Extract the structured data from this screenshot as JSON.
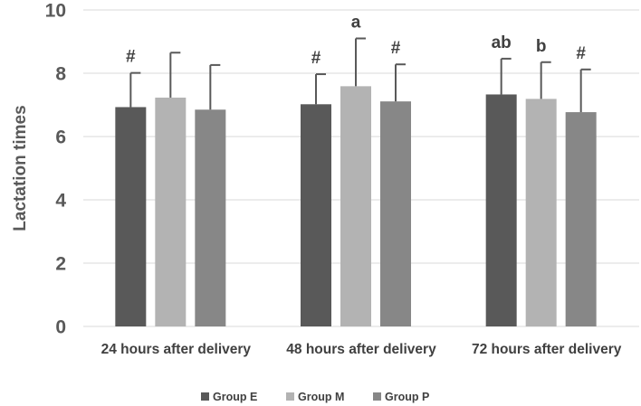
{
  "chart_data": {
    "type": "bar",
    "title": "",
    "xlabel": "",
    "ylabel": "Lactation times",
    "ylim": [
      0,
      10
    ],
    "yticks": [
      0,
      2,
      4,
      6,
      8,
      10
    ],
    "grid": true,
    "legend_position": "bottom",
    "categories": [
      "24 hours after delivery",
      "48 hours after delivery",
      "72 hours after delivery"
    ],
    "series": [
      {
        "name": "Group E",
        "color": "#595959",
        "values": [
          6.93,
          7.02,
          7.33
        ],
        "errors": [
          1.08,
          0.95,
          1.13
        ],
        "annotations": [
          "#",
          "#",
          "ab"
        ]
      },
      {
        "name": "Group M",
        "color": "#b3b3b3",
        "values": [
          7.23,
          7.59,
          7.19
        ],
        "errors": [
          1.42,
          1.51,
          1.16
        ],
        "annotations": [
          "",
          "a",
          "b"
        ]
      },
      {
        "name": "Group P",
        "color": "#878787",
        "values": [
          6.85,
          7.11,
          6.77
        ],
        "errors": [
          1.41,
          1.17,
          1.35
        ],
        "annotations": [
          "",
          "#",
          "#"
        ]
      }
    ]
  }
}
